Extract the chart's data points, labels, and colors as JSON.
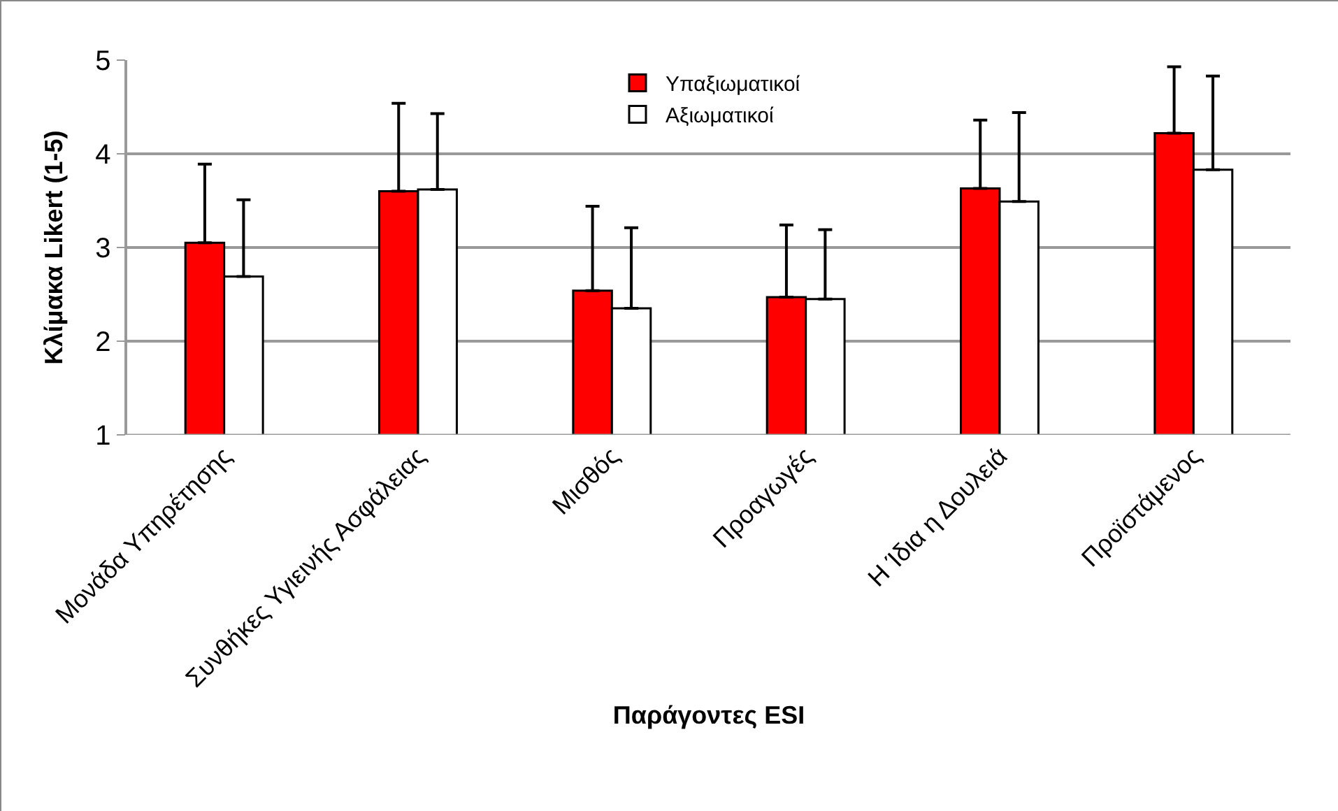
{
  "chart_data": {
    "type": "bar",
    "xlabel": "Παράγοντες ESI",
    "ylabel": "Κλίμακα Likert (1-5)",
    "categories": [
      "Μονάδα Υπηρέτησης",
      "Συνθήκες Υγιεινής Ασφάλειας",
      "Μισθός",
      "Προαγωγές",
      "Η Ίδια η Δουλειά",
      "Προϊστάμενος"
    ],
    "series": [
      {
        "name": "Υπαξιωματικοί",
        "color": "#ff0000",
        "values": [
          3.05,
          3.6,
          2.54,
          2.47,
          3.63,
          4.22
        ],
        "errors": [
          [
            3.05,
            3.89
          ],
          [
            3.6,
            4.54
          ],
          [
            2.54,
            3.44
          ],
          [
            2.47,
            3.24
          ],
          [
            3.63,
            4.36
          ],
          [
            4.22,
            4.93
          ]
        ]
      },
      {
        "name": "Αξιωματικοί",
        "color": "#ffffff",
        "values": [
          2.69,
          3.62,
          2.35,
          2.45,
          3.49,
          3.83
        ],
        "errors": [
          [
            2.69,
            3.51
          ],
          [
            3.62,
            4.43
          ],
          [
            2.35,
            3.21
          ],
          [
            2.45,
            3.19
          ],
          [
            3.49,
            4.44
          ],
          [
            3.83,
            4.83
          ]
        ]
      }
    ],
    "ylim": [
      1,
      5
    ],
    "yticks": [
      1,
      2,
      3,
      4,
      5
    ],
    "grid": "y",
    "legend": "top"
  }
}
